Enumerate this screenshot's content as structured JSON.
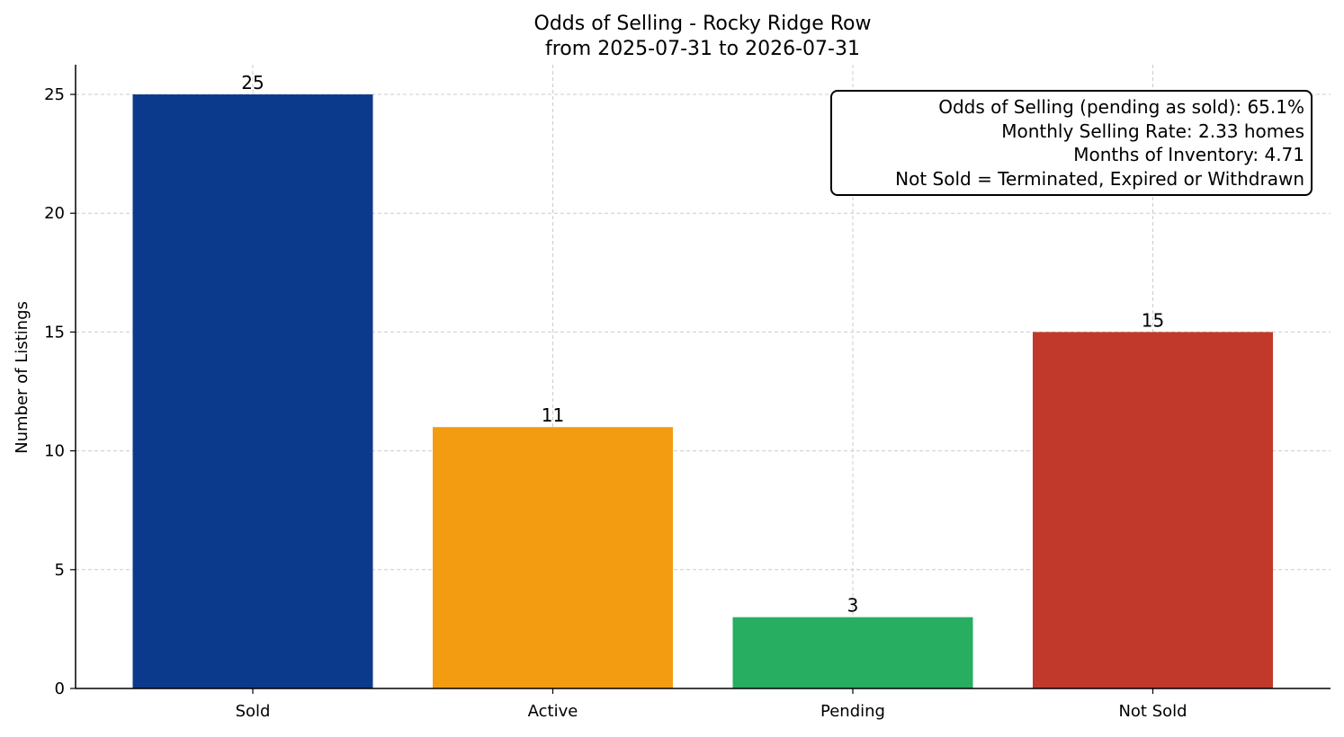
{
  "chart_data": {
    "type": "bar",
    "title": "Odds of Selling - Rocky Ridge Row",
    "subtitle": "from 2025-07-31 to 2026-07-31",
    "xlabel": "",
    "ylabel": "Number of Listings",
    "categories": [
      "Sold",
      "Active",
      "Pending",
      "Not Sold"
    ],
    "values": [
      25,
      11,
      3,
      15
    ],
    "data_labels": [
      "25",
      "11",
      "3",
      "15"
    ],
    "colors": [
      "#0b3a8c",
      "#f39c12",
      "#27ae60",
      "#c0392b"
    ],
    "ylim": [
      0,
      26.25
    ],
    "yticks": [
      0,
      5,
      10,
      15,
      20,
      25
    ],
    "grid": true,
    "info_box": {
      "position": "top-right",
      "lines": [
        "Odds of Selling (pending as sold): 65.1%",
        "Monthly Selling Rate: 2.33 homes",
        "Months of Inventory: 4.71",
        "Not Sold = Terminated, Expired or Withdrawn"
      ]
    }
  }
}
